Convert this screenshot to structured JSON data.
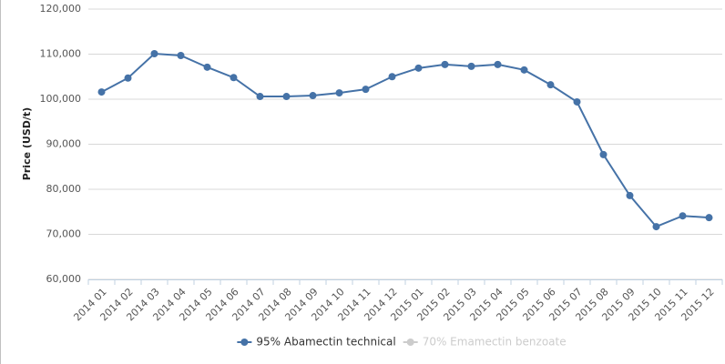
{
  "chart_data": {
    "type": "line",
    "y_label": "Price (USD/t)",
    "categories": [
      "2014 01",
      "2014 02",
      "2014 03",
      "2014 04",
      "2014 05",
      "2014 06",
      "2014 07",
      "2014 08",
      "2014 09",
      "2014 10",
      "2014 11",
      "2014 12",
      "2015 01",
      "2015 02",
      "2015 03",
      "2015 04",
      "2015 05",
      "2015 06",
      "2015 07",
      "2015 08",
      "2015 09",
      "2015 10",
      "2015 11",
      "2015 12"
    ],
    "series": [
      {
        "name": "95% Abamectin technical",
        "color": "#4572a7",
        "visible": true,
        "values": [
          101600,
          104700,
          110100,
          109700,
          107100,
          104800,
          100600,
          100600,
          100800,
          101400,
          102200,
          105000,
          106900,
          107700,
          107300,
          107700,
          106500,
          103200,
          99400,
          87700,
          78600,
          71700,
          74100,
          73700
        ]
      },
      {
        "name": "70% Emamectin benzoate",
        "color": "#cccccc",
        "visible": false,
        "values": [
          null,
          null,
          null,
          null,
          null,
          null,
          null,
          null,
          null,
          null,
          null,
          null,
          null,
          null,
          null,
          null,
          null,
          null,
          null,
          null,
          null,
          null,
          null,
          null
        ]
      }
    ],
    "ylim": [
      60000,
      120000
    ],
    "yticks": [
      {
        "value": 60000,
        "label": "60,000"
      },
      {
        "value": 70000,
        "label": "70,000"
      },
      {
        "value": 80000,
        "label": "80,000"
      },
      {
        "value": 90000,
        "label": "90,000"
      },
      {
        "value": 100000,
        "label": "100,000"
      },
      {
        "value": 110000,
        "label": "110,000"
      },
      {
        "value": 120000,
        "label": "120,000"
      }
    ],
    "grid": true,
    "legend": "bottom"
  }
}
